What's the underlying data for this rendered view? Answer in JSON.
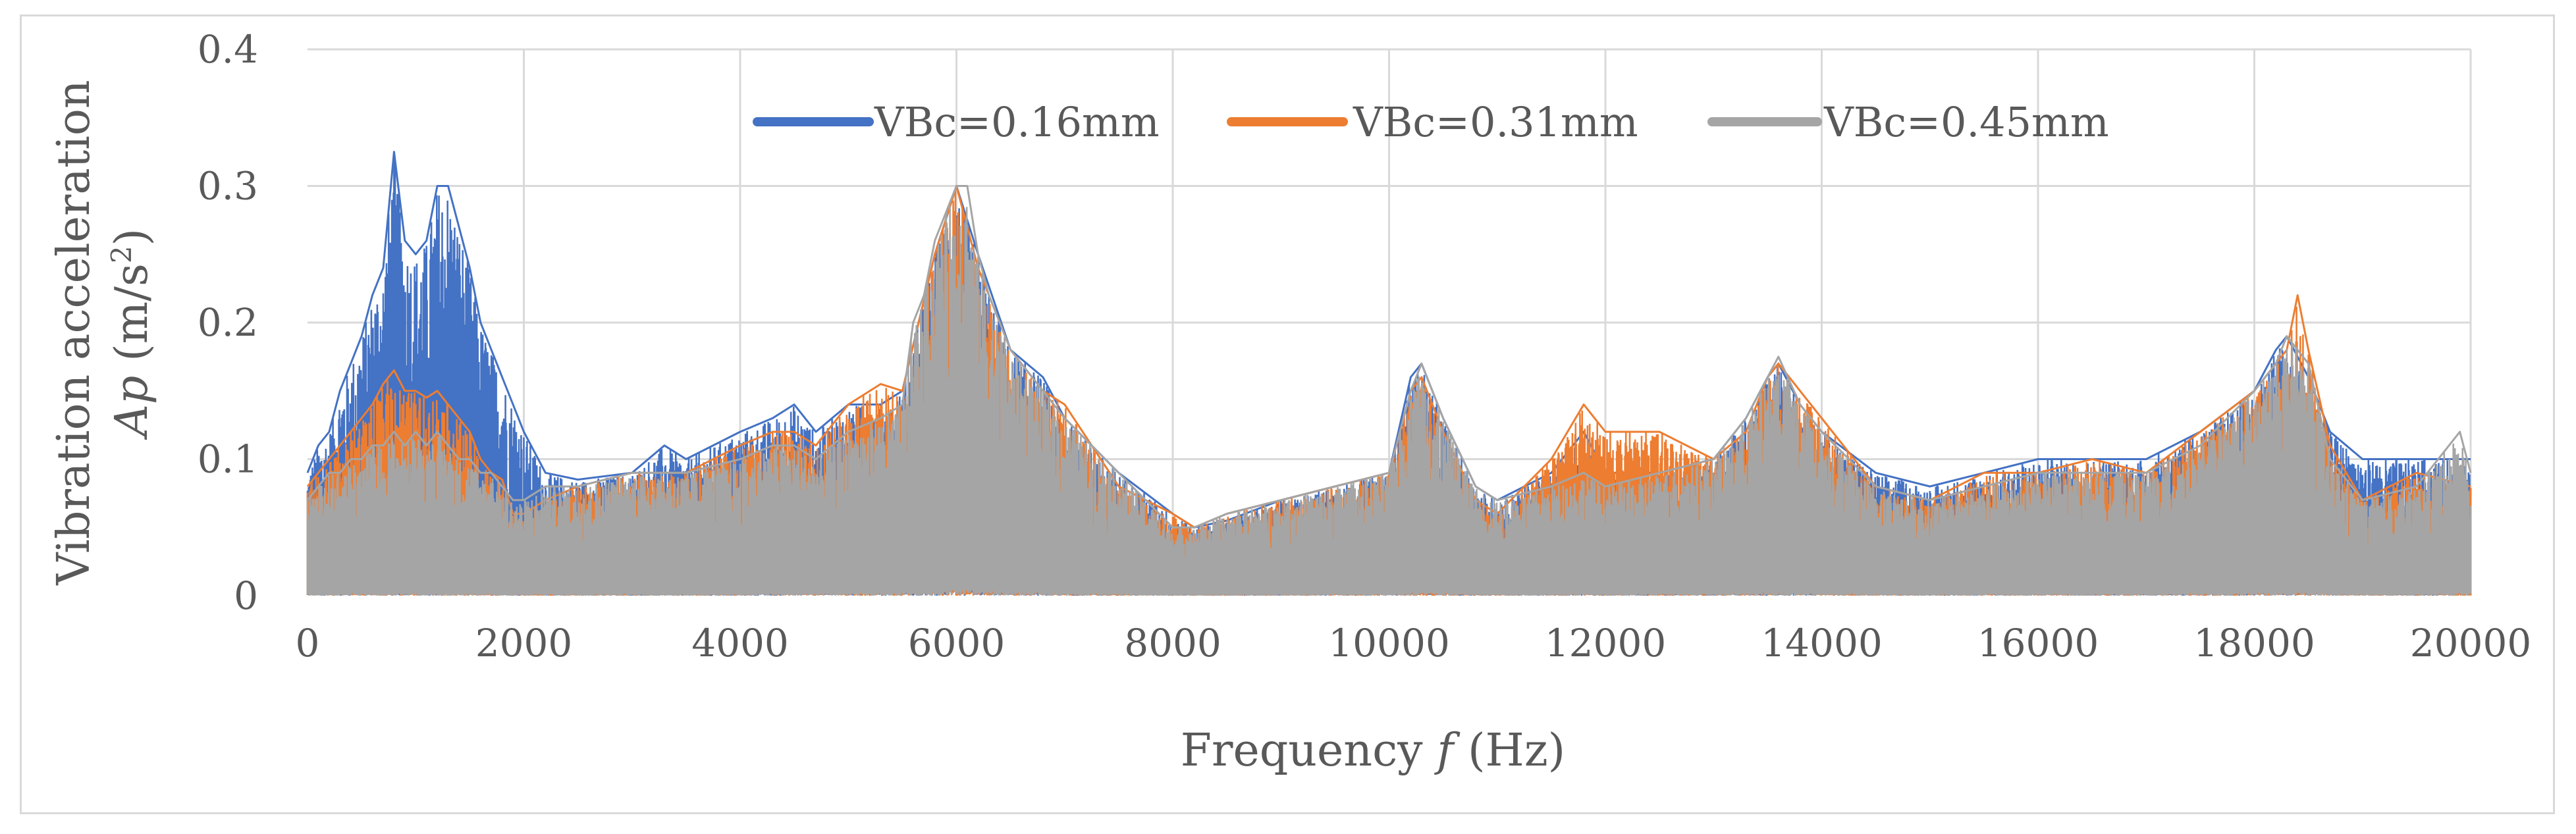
{
  "chart_data": {
    "type": "line",
    "title": "",
    "xlabel_prefix": "Frequency ",
    "xlabel_var": "f",
    "xlabel_unit": " (Hz)",
    "ylabel_line1": "Vibration acceleration",
    "ylabel_var": "Ap",
    "ylabel_unit_pre": " (m/s",
    "ylabel_unit_sup": "2",
    "ylabel_unit_post": ")",
    "xlim": [
      0,
      20000
    ],
    "ylim": [
      0,
      0.4
    ],
    "xticks": [
      0,
      2000,
      4000,
      6000,
      8000,
      10000,
      12000,
      14000,
      16000,
      18000,
      20000
    ],
    "xtick_labels": [
      "0",
      "2000",
      "4000",
      "6000",
      "8000",
      "10000",
      "12000",
      "14000",
      "16000",
      "18000",
      "20000"
    ],
    "yticks": [
      0,
      0.1,
      0.2,
      0.3,
      0.4
    ],
    "ytick_labels": [
      "0",
      "0.1",
      "0.2",
      "0.3",
      "0.4"
    ],
    "grid": true,
    "legend_position": "top-center",
    "series": [
      {
        "name": "VBc=0.16mm",
        "color": "#4472C4",
        "envelope": {
          "x": [
            0,
            100,
            200,
            300,
            400,
            500,
            600,
            700,
            800,
            900,
            1000,
            1100,
            1200,
            1300,
            1400,
            1500,
            1600,
            1700,
            1800,
            1900,
            2000,
            2200,
            2500,
            3000,
            3300,
            3500,
            4000,
            4300,
            4500,
            4700,
            5000,
            5300,
            5500,
            5800,
            6000,
            6200,
            6500,
            6800,
            7000,
            7500,
            8000,
            8200,
            8500,
            9000,
            9500,
            10000,
            10200,
            10300,
            10500,
            10800,
            11000,
            11500,
            11800,
            12000,
            12500,
            13000,
            13300,
            13500,
            13600,
            13800,
            14000,
            14500,
            15000,
            15500,
            16000,
            16500,
            17000,
            17500,
            18000,
            18200,
            18300,
            18500,
            18700,
            19000,
            19500,
            20000
          ],
          "y": [
            0.09,
            0.11,
            0.12,
            0.15,
            0.17,
            0.19,
            0.22,
            0.24,
            0.325,
            0.26,
            0.25,
            0.26,
            0.3,
            0.3,
            0.27,
            0.24,
            0.2,
            0.18,
            0.16,
            0.14,
            0.12,
            0.09,
            0.085,
            0.09,
            0.11,
            0.1,
            0.12,
            0.13,
            0.14,
            0.12,
            0.14,
            0.14,
            0.15,
            0.25,
            0.3,
            0.25,
            0.18,
            0.16,
            0.13,
            0.09,
            0.06,
            0.05,
            0.055,
            0.07,
            0.08,
            0.09,
            0.16,
            0.17,
            0.13,
            0.08,
            0.07,
            0.09,
            0.12,
            0.09,
            0.09,
            0.1,
            0.13,
            0.16,
            0.17,
            0.14,
            0.12,
            0.09,
            0.08,
            0.09,
            0.1,
            0.1,
            0.1,
            0.12,
            0.15,
            0.18,
            0.19,
            0.16,
            0.12,
            0.1,
            0.1,
            0.1
          ]
        }
      },
      {
        "name": "VBc=0.31mm",
        "color": "#ED7D31",
        "envelope": {
          "x": [
            0,
            100,
            200,
            300,
            400,
            500,
            600,
            700,
            800,
            900,
            1000,
            1100,
            1200,
            1300,
            1400,
            1500,
            1600,
            1700,
            1800,
            1900,
            2000,
            2200,
            2500,
            3000,
            3300,
            3500,
            4000,
            4300,
            4500,
            4700,
            5000,
            5300,
            5500,
            5800,
            6000,
            6200,
            6500,
            6800,
            7000,
            7500,
            8000,
            8200,
            8500,
            9000,
            9500,
            10000,
            10200,
            10300,
            10500,
            10800,
            11000,
            11500,
            11800,
            12000,
            12500,
            13000,
            13300,
            13500,
            13600,
            13800,
            14000,
            14500,
            15000,
            15500,
            16000,
            16500,
            17000,
            17500,
            18000,
            18200,
            18300,
            18400,
            18500,
            18700,
            19000,
            19500,
            20000
          ],
          "y": [
            0.08,
            0.09,
            0.1,
            0.11,
            0.12,
            0.13,
            0.14,
            0.155,
            0.165,
            0.15,
            0.15,
            0.145,
            0.15,
            0.14,
            0.13,
            0.12,
            0.1,
            0.09,
            0.085,
            0.06,
            0.06,
            0.07,
            0.08,
            0.09,
            0.09,
            0.09,
            0.11,
            0.12,
            0.12,
            0.11,
            0.14,
            0.155,
            0.15,
            0.25,
            0.3,
            0.24,
            0.18,
            0.15,
            0.14,
            0.08,
            0.06,
            0.05,
            0.06,
            0.07,
            0.08,
            0.09,
            0.15,
            0.16,
            0.12,
            0.07,
            0.06,
            0.1,
            0.14,
            0.12,
            0.12,
            0.1,
            0.12,
            0.16,
            0.17,
            0.15,
            0.13,
            0.08,
            0.07,
            0.09,
            0.09,
            0.1,
            0.09,
            0.12,
            0.15,
            0.17,
            0.18,
            0.22,
            0.18,
            0.11,
            0.07,
            0.09,
            0.08
          ]
        }
      },
      {
        "name": "VBc=0.45mm",
        "color": "#A5A5A5",
        "envelope": {
          "x": [
            0,
            100,
            200,
            300,
            400,
            500,
            600,
            700,
            800,
            900,
            1000,
            1100,
            1200,
            1300,
            1400,
            1500,
            1600,
            1700,
            1800,
            1900,
            2000,
            2200,
            2500,
            3000,
            3300,
            3500,
            4000,
            4300,
            4500,
            4700,
            5000,
            5300,
            5500,
            5600,
            5700,
            5800,
            5900,
            6000,
            6100,
            6200,
            6300,
            6500,
            6800,
            7000,
            7500,
            8000,
            8200,
            8500,
            9000,
            9500,
            10000,
            10200,
            10300,
            10500,
            10800,
            11000,
            11500,
            11800,
            12000,
            12500,
            13000,
            13300,
            13500,
            13600,
            13800,
            14000,
            14500,
            15000,
            15500,
            16000,
            16500,
            17000,
            17500,
            18000,
            18200,
            18300,
            18500,
            18700,
            19000,
            19500,
            19900,
            20000
          ],
          "y": [
            0.07,
            0.08,
            0.09,
            0.09,
            0.1,
            0.1,
            0.11,
            0.11,
            0.12,
            0.11,
            0.12,
            0.11,
            0.12,
            0.11,
            0.1,
            0.1,
            0.09,
            0.09,
            0.08,
            0.07,
            0.07,
            0.08,
            0.08,
            0.09,
            0.09,
            0.09,
            0.1,
            0.11,
            0.11,
            0.1,
            0.12,
            0.13,
            0.14,
            0.2,
            0.22,
            0.26,
            0.28,
            0.3,
            0.3,
            0.25,
            0.22,
            0.18,
            0.15,
            0.13,
            0.09,
            0.05,
            0.05,
            0.06,
            0.07,
            0.08,
            0.09,
            0.15,
            0.17,
            0.13,
            0.08,
            0.07,
            0.08,
            0.09,
            0.08,
            0.09,
            0.1,
            0.13,
            0.16,
            0.175,
            0.14,
            0.12,
            0.08,
            0.07,
            0.08,
            0.09,
            0.09,
            0.09,
            0.11,
            0.15,
            0.17,
            0.19,
            0.17,
            0.1,
            0.07,
            0.08,
            0.12,
            0.09
          ]
        }
      }
    ]
  }
}
